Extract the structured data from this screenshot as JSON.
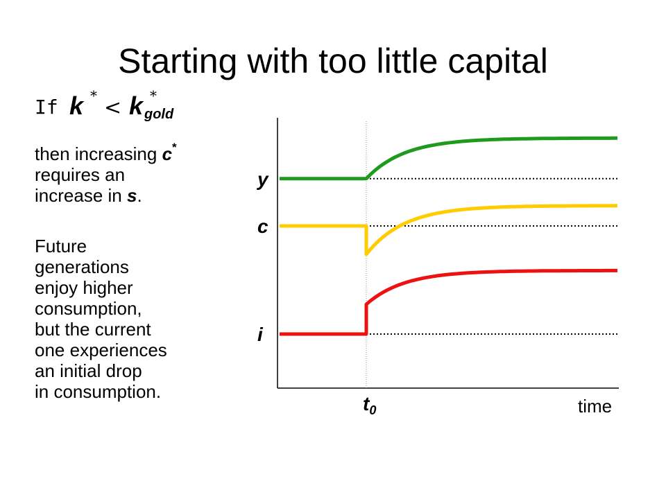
{
  "title": "Starting with too little capital",
  "condition": {
    "if_text": "If",
    "lhs_var": "k",
    "lhs_sup": "*",
    "relation": "<",
    "rhs_var": "k",
    "rhs_sup": "*",
    "rhs_sub": "gold"
  },
  "paragraph1": {
    "line1_pre": "then increasing ",
    "line1_var": "c",
    "line1_sup": "*",
    "line2": "requires an",
    "line3_pre": "increase in ",
    "line3_var": "s",
    "line3_post": "."
  },
  "paragraph2": {
    "lines": [
      "Future",
      "generations",
      "enjoy higher",
      "consumption,",
      "but the current",
      "one experiences",
      "an initial drop",
      "in consumption."
    ]
  },
  "chart_data": {
    "type": "line",
    "xlabel": "time",
    "shock_time_label": "t0",
    "series": [
      {
        "name": "y",
        "color": "#1e9a1e",
        "initial_level": 0.775,
        "jump_level": 0.775,
        "final_level": 0.925
      },
      {
        "name": "c",
        "color": "#ffcc00",
        "initial_level": 0.6,
        "jump_level": 0.495,
        "final_level": 0.675
      },
      {
        "name": "i",
        "color": "#ee1111",
        "initial_level": 0.2,
        "jump_level": 0.31,
        "final_level": 0.435
      }
    ],
    "dotted_reference_lines": true,
    "colors": {
      "axis": "#000000",
      "reference": "#000000"
    }
  }
}
